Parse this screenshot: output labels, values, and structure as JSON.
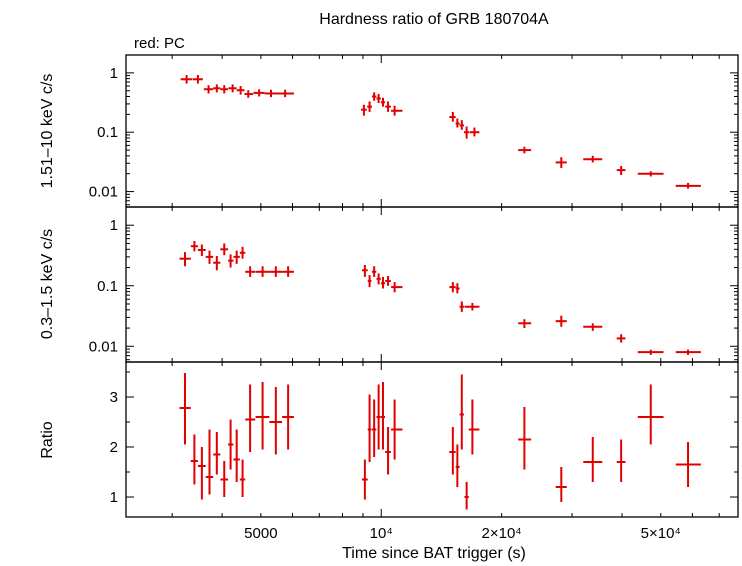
{
  "chart_data": {
    "type": "scatter",
    "title": "Hardness ratio of GRB 180704A",
    "legend": "red: PC",
    "xlabel": "Time since BAT trigger (s)",
    "xscale": "log",
    "xlim": [
      2300,
      78000
    ],
    "xticks": [
      {
        "value": 5000,
        "label": "5000"
      },
      {
        "value": 10000,
        "label": "10⁴"
      },
      {
        "value": 20000,
        "label": "2×10⁴"
      },
      {
        "value": 50000,
        "label": "5×10⁴"
      }
    ],
    "series_color": "#e00000",
    "panels": [
      {
        "name": "hard",
        "ylabel": "1.51–10 keV c/s",
        "yscale": "log",
        "ylim": [
          0.0055,
          2.0
        ],
        "yticks": [
          {
            "value": 1,
            "label": "1"
          },
          {
            "value": 0.1,
            "label": "0.1"
          },
          {
            "value": 0.01,
            "label": "0.01"
          }
        ],
        "points": [
          {
            "t": 3260,
            "tlo": 3150,
            "thi": 3370,
            "y": 0.78,
            "ylo": 0.66,
            "yhi": 0.92
          },
          {
            "t": 3480,
            "tlo": 3380,
            "thi": 3580,
            "y": 0.78,
            "ylo": 0.66,
            "yhi": 0.92
          },
          {
            "t": 3700,
            "tlo": 3600,
            "thi": 3800,
            "y": 0.53,
            "ylo": 0.45,
            "yhi": 0.62
          },
          {
            "t": 3880,
            "tlo": 3800,
            "thi": 3960,
            "y": 0.55,
            "ylo": 0.47,
            "yhi": 0.64
          },
          {
            "t": 4050,
            "tlo": 3960,
            "thi": 4140,
            "y": 0.53,
            "ylo": 0.45,
            "yhi": 0.62
          },
          {
            "t": 4250,
            "tlo": 4150,
            "thi": 4350,
            "y": 0.55,
            "ylo": 0.47,
            "yhi": 0.64
          },
          {
            "t": 4450,
            "tlo": 4350,
            "thi": 4550,
            "y": 0.51,
            "ylo": 0.43,
            "yhi": 0.6
          },
          {
            "t": 4650,
            "tlo": 4550,
            "thi": 4780,
            "y": 0.44,
            "ylo": 0.38,
            "yhi": 0.51
          },
          {
            "t": 4950,
            "tlo": 4790,
            "thi": 5110,
            "y": 0.46,
            "ylo": 0.4,
            "yhi": 0.53
          },
          {
            "t": 5300,
            "tlo": 5110,
            "thi": 5500,
            "y": 0.45,
            "ylo": 0.39,
            "yhi": 0.52
          },
          {
            "t": 5750,
            "tlo": 5500,
            "thi": 6050,
            "y": 0.45,
            "ylo": 0.39,
            "yhi": 0.52
          },
          {
            "t": 9050,
            "tlo": 8900,
            "thi": 9200,
            "y": 0.24,
            "ylo": 0.19,
            "yhi": 0.29
          },
          {
            "t": 9350,
            "tlo": 9220,
            "thi": 9480,
            "y": 0.27,
            "ylo": 0.22,
            "yhi": 0.33
          },
          {
            "t": 9600,
            "tlo": 9480,
            "thi": 9720,
            "y": 0.4,
            "ylo": 0.34,
            "yhi": 0.47
          },
          {
            "t": 9850,
            "tlo": 9730,
            "thi": 9970,
            "y": 0.37,
            "ylo": 0.31,
            "yhi": 0.44
          },
          {
            "t": 10100,
            "tlo": 9980,
            "thi": 10220,
            "y": 0.32,
            "ylo": 0.27,
            "yhi": 0.38
          },
          {
            "t": 10400,
            "tlo": 10230,
            "thi": 10570,
            "y": 0.27,
            "ylo": 0.22,
            "yhi": 0.33
          },
          {
            "t": 10800,
            "tlo": 10580,
            "thi": 11300,
            "y": 0.23,
            "ylo": 0.19,
            "yhi": 0.28
          },
          {
            "t": 15100,
            "tlo": 14800,
            "thi": 15350,
            "y": 0.18,
            "ylo": 0.15,
            "yhi": 0.22
          },
          {
            "t": 15500,
            "tlo": 15350,
            "thi": 15700,
            "y": 0.14,
            "ylo": 0.12,
            "yhi": 0.17
          },
          {
            "t": 15900,
            "tlo": 15700,
            "thi": 16100,
            "y": 0.13,
            "ylo": 0.11,
            "yhi": 0.16
          },
          {
            "t": 16350,
            "tlo": 16100,
            "thi": 16600,
            "y": 0.1,
            "ylo": 0.078,
            "yhi": 0.125
          },
          {
            "t": 17100,
            "tlo": 16650,
            "thi": 17600,
            "y": 0.1,
            "ylo": 0.085,
            "yhi": 0.12
          },
          {
            "t": 22800,
            "tlo": 22000,
            "thi": 23700,
            "y": 0.05,
            "ylo": 0.044,
            "yhi": 0.057
          },
          {
            "t": 28200,
            "tlo": 27300,
            "thi": 29100,
            "y": 0.031,
            "ylo": 0.025,
            "yhi": 0.038
          },
          {
            "t": 33800,
            "tlo": 32000,
            "thi": 35700,
            "y": 0.035,
            "ylo": 0.031,
            "yhi": 0.04
          },
          {
            "t": 39800,
            "tlo": 38800,
            "thi": 40800,
            "y": 0.023,
            "ylo": 0.019,
            "yhi": 0.027
          },
          {
            "t": 47200,
            "tlo": 43800,
            "thi": 50800,
            "y": 0.02,
            "ylo": 0.018,
            "yhi": 0.022
          },
          {
            "t": 58500,
            "tlo": 54500,
            "thi": 63000,
            "y": 0.0125,
            "ylo": 0.0112,
            "yhi": 0.014
          }
        ]
      },
      {
        "name": "soft",
        "ylabel": "0.3–1.5 keV c/s",
        "yscale": "log",
        "ylim": [
          0.0055,
          2.0
        ],
        "yticks": [
          {
            "value": 1,
            "label": "1"
          },
          {
            "value": 0.1,
            "label": "0.1"
          },
          {
            "value": 0.01,
            "label": "0.01"
          }
        ],
        "points": [
          {
            "t": 3230,
            "tlo": 3130,
            "thi": 3340,
            "y": 0.28,
            "ylo": 0.21,
            "yhi": 0.36
          },
          {
            "t": 3410,
            "tlo": 3340,
            "thi": 3480,
            "y": 0.45,
            "ylo": 0.37,
            "yhi": 0.55
          },
          {
            "t": 3560,
            "tlo": 3480,
            "thi": 3640,
            "y": 0.39,
            "ylo": 0.31,
            "yhi": 0.48
          },
          {
            "t": 3720,
            "tlo": 3640,
            "thi": 3800,
            "y": 0.3,
            "ylo": 0.23,
            "yhi": 0.38
          },
          {
            "t": 3880,
            "tlo": 3800,
            "thi": 3960,
            "y": 0.24,
            "ylo": 0.18,
            "yhi": 0.31
          },
          {
            "t": 4050,
            "tlo": 3960,
            "thi": 4140,
            "y": 0.4,
            "ylo": 0.32,
            "yhi": 0.5
          },
          {
            "t": 4200,
            "tlo": 4140,
            "thi": 4270,
            "y": 0.26,
            "ylo": 0.2,
            "yhi": 0.33
          },
          {
            "t": 4350,
            "tlo": 4270,
            "thi": 4430,
            "y": 0.3,
            "ylo": 0.23,
            "yhi": 0.38
          },
          {
            "t": 4500,
            "tlo": 4430,
            "thi": 4570,
            "y": 0.35,
            "ylo": 0.28,
            "yhi": 0.44
          },
          {
            "t": 4700,
            "tlo": 4570,
            "thi": 4840,
            "y": 0.17,
            "ylo": 0.14,
            "yhi": 0.21
          },
          {
            "t": 5050,
            "tlo": 4850,
            "thi": 5250,
            "y": 0.17,
            "ylo": 0.14,
            "yhi": 0.21
          },
          {
            "t": 5450,
            "tlo": 5250,
            "thi": 5650,
            "y": 0.17,
            "ylo": 0.14,
            "yhi": 0.21
          },
          {
            "t": 5850,
            "tlo": 5650,
            "thi": 6050,
            "y": 0.17,
            "ylo": 0.14,
            "yhi": 0.21
          },
          {
            "t": 9100,
            "tlo": 8950,
            "thi": 9250,
            "y": 0.18,
            "ylo": 0.14,
            "yhi": 0.22
          },
          {
            "t": 9350,
            "tlo": 9250,
            "thi": 9450,
            "y": 0.12,
            "ylo": 0.095,
            "yhi": 0.15
          },
          {
            "t": 9600,
            "tlo": 9480,
            "thi": 9720,
            "y": 0.17,
            "ylo": 0.14,
            "yhi": 0.21
          },
          {
            "t": 9850,
            "tlo": 9730,
            "thi": 9970,
            "y": 0.13,
            "ylo": 0.105,
            "yhi": 0.16
          },
          {
            "t": 10100,
            "tlo": 9980,
            "thi": 10220,
            "y": 0.11,
            "ylo": 0.09,
            "yhi": 0.14
          },
          {
            "t": 10400,
            "tlo": 10230,
            "thi": 10570,
            "y": 0.12,
            "ylo": 0.1,
            "yhi": 0.145
          },
          {
            "t": 10800,
            "tlo": 10580,
            "thi": 11300,
            "y": 0.095,
            "ylo": 0.078,
            "yhi": 0.115
          },
          {
            "t": 15100,
            "tlo": 14800,
            "thi": 15350,
            "y": 0.095,
            "ylo": 0.078,
            "yhi": 0.115
          },
          {
            "t": 15500,
            "tlo": 15350,
            "thi": 15700,
            "y": 0.09,
            "ylo": 0.075,
            "yhi": 0.11
          },
          {
            "t": 15900,
            "tlo": 15700,
            "thi": 16100,
            "y": 0.045,
            "ylo": 0.037,
            "yhi": 0.055
          },
          {
            "t": 16900,
            "tlo": 16150,
            "thi": 17600,
            "y": 0.045,
            "ylo": 0.039,
            "yhi": 0.052
          },
          {
            "t": 22800,
            "tlo": 22000,
            "thi": 23700,
            "y": 0.024,
            "ylo": 0.02,
            "yhi": 0.028
          },
          {
            "t": 28200,
            "tlo": 27300,
            "thi": 29100,
            "y": 0.026,
            "ylo": 0.021,
            "yhi": 0.032
          },
          {
            "t": 33800,
            "tlo": 32000,
            "thi": 35700,
            "y": 0.021,
            "ylo": 0.018,
            "yhi": 0.024
          },
          {
            "t": 39800,
            "tlo": 38800,
            "thi": 40800,
            "y": 0.0135,
            "ylo": 0.0115,
            "yhi": 0.0158
          },
          {
            "t": 47200,
            "tlo": 43800,
            "thi": 50800,
            "y": 0.008,
            "ylo": 0.0072,
            "yhi": 0.0088
          },
          {
            "t": 58500,
            "tlo": 54500,
            "thi": 63000,
            "y": 0.008,
            "ylo": 0.0072,
            "yhi": 0.0088
          }
        ]
      },
      {
        "name": "ratio",
        "ylabel": "Ratio",
        "yscale": "linear",
        "ylim": [
          0.6,
          3.7
        ],
        "yticks": [
          {
            "value": 1,
            "label": "1"
          },
          {
            "value": 2,
            "label": "2"
          },
          {
            "value": 3,
            "label": "3"
          }
        ],
        "points": [
          {
            "t": 3230,
            "tlo": 3130,
            "thi": 3340,
            "y": 2.78,
            "ylo": 2.05,
            "yhi": 3.48
          },
          {
            "t": 3410,
            "tlo": 3340,
            "thi": 3480,
            "y": 1.72,
            "ylo": 1.25,
            "yhi": 2.25
          },
          {
            "t": 3560,
            "tlo": 3480,
            "thi": 3640,
            "y": 1.62,
            "ylo": 0.95,
            "yhi": 2.0
          },
          {
            "t": 3720,
            "tlo": 3640,
            "thi": 3800,
            "y": 1.4,
            "ylo": 1.05,
            "yhi": 2.35
          },
          {
            "t": 3880,
            "tlo": 3800,
            "thi": 3960,
            "y": 1.85,
            "ylo": 1.45,
            "yhi": 2.3
          },
          {
            "t": 4050,
            "tlo": 3960,
            "thi": 4140,
            "y": 1.35,
            "ylo": 1.0,
            "yhi": 1.72
          },
          {
            "t": 4200,
            "tlo": 4140,
            "thi": 4270,
            "y": 2.05,
            "ylo": 1.55,
            "yhi": 2.55
          },
          {
            "t": 4350,
            "tlo": 4270,
            "thi": 4430,
            "y": 1.75,
            "ylo": 1.3,
            "yhi": 2.35
          },
          {
            "t": 4500,
            "tlo": 4430,
            "thi": 4570,
            "y": 1.35,
            "ylo": 1.0,
            "yhi": 1.75
          },
          {
            "t": 4700,
            "tlo": 4570,
            "thi": 4840,
            "y": 2.55,
            "ylo": 1.9,
            "yhi": 3.25
          },
          {
            "t": 5050,
            "tlo": 4850,
            "thi": 5250,
            "y": 2.6,
            "ylo": 1.95,
            "yhi": 3.3
          },
          {
            "t": 5450,
            "tlo": 5250,
            "thi": 5650,
            "y": 2.5,
            "ylo": 1.85,
            "yhi": 3.2
          },
          {
            "t": 5850,
            "tlo": 5650,
            "thi": 6050,
            "y": 2.6,
            "ylo": 1.95,
            "yhi": 3.25
          },
          {
            "t": 9100,
            "tlo": 8950,
            "thi": 9250,
            "y": 1.35,
            "ylo": 0.95,
            "yhi": 1.75
          },
          {
            "t": 9350,
            "tlo": 9250,
            "thi": 9450,
            "y": 2.35,
            "ylo": 1.7,
            "yhi": 3.05
          },
          {
            "t": 9600,
            "tlo": 9480,
            "thi": 9720,
            "y": 2.35,
            "ylo": 1.8,
            "yhi": 2.95
          },
          {
            "t": 9850,
            "tlo": 9730,
            "thi": 9970,
            "y": 2.6,
            "ylo": 1.95,
            "yhi": 3.25
          },
          {
            "t": 10100,
            "tlo": 9980,
            "thi": 10220,
            "y": 2.6,
            "ylo": 1.95,
            "yhi": 3.3
          },
          {
            "t": 10400,
            "tlo": 10230,
            "thi": 10570,
            "y": 1.9,
            "ylo": 1.45,
            "yhi": 2.4
          },
          {
            "t": 10800,
            "tlo": 10580,
            "thi": 11300,
            "y": 2.35,
            "ylo": 1.75,
            "yhi": 2.95
          },
          {
            "t": 15100,
            "tlo": 14800,
            "thi": 15350,
            "y": 1.9,
            "ylo": 1.45,
            "yhi": 2.4
          },
          {
            "t": 15500,
            "tlo": 15350,
            "thi": 15700,
            "y": 1.6,
            "ylo": 1.2,
            "yhi": 2.05
          },
          {
            "t": 15900,
            "tlo": 15700,
            "thi": 16100,
            "y": 2.65,
            "ylo": 1.95,
            "yhi": 3.45
          },
          {
            "t": 16350,
            "tlo": 16150,
            "thi": 16550,
            "y": 1.0,
            "ylo": 0.75,
            "yhi": 1.3
          },
          {
            "t": 16900,
            "tlo": 16550,
            "thi": 17600,
            "y": 2.35,
            "ylo": 1.85,
            "yhi": 2.95
          },
          {
            "t": 22800,
            "tlo": 22000,
            "thi": 23700,
            "y": 2.15,
            "ylo": 1.55,
            "yhi": 2.8
          },
          {
            "t": 28200,
            "tlo": 27300,
            "thi": 29100,
            "y": 1.2,
            "ylo": 0.9,
            "yhi": 1.6
          },
          {
            "t": 33800,
            "tlo": 32000,
            "thi": 35700,
            "y": 1.7,
            "ylo": 1.3,
            "yhi": 2.2
          },
          {
            "t": 39800,
            "tlo": 38800,
            "thi": 40800,
            "y": 1.7,
            "ylo": 1.3,
            "yhi": 2.15
          },
          {
            "t": 47200,
            "tlo": 43800,
            "thi": 50800,
            "y": 2.6,
            "ylo": 2.05,
            "yhi": 3.25
          },
          {
            "t": 58500,
            "tlo": 54500,
            "thi": 63000,
            "y": 1.65,
            "ylo": 1.2,
            "yhi": 2.1
          }
        ]
      }
    ]
  }
}
